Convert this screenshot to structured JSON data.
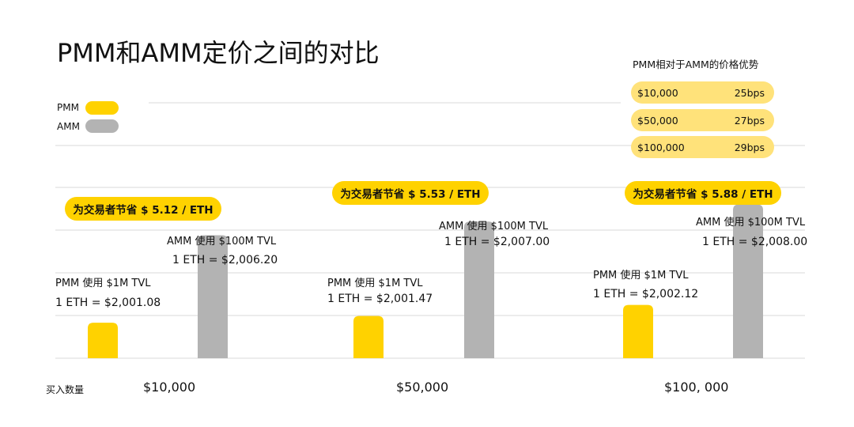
{
  "title": "PMM和AMM定价之间的对比",
  "legend": [
    {
      "label": "PMM",
      "color": "#FFD200"
    },
    {
      "label": "AMM",
      "color": "#B3B3B3"
    }
  ],
  "advantage_table": {
    "title": "PMM相对于AMM的价格优势",
    "rows": [
      {
        "amount": "$10,000",
        "bps": "25bps"
      },
      {
        "amount": "$50,000",
        "bps": "27bps"
      },
      {
        "amount": "$100,000",
        "bps": "29bps"
      }
    ]
  },
  "chart_data": {
    "type": "bar",
    "categories": [
      "$10,000",
      "$50,000",
      "$100, 000"
    ],
    "xlabel": "买入数量",
    "series": [
      {
        "name": "PMM",
        "color": "#FFD200",
        "values": [
          2001.08,
          2001.47,
          2002.12
        ]
      },
      {
        "name": "AMM",
        "color": "#B3B3B3",
        "values": [
          2006.2,
          2007.0,
          2008.0
        ]
      }
    ],
    "grid": true,
    "groups": [
      {
        "savings": "为交易者节省 $ 5.12 / ETH",
        "pmm_label": "PMM 使用 $1M TVL",
        "pmm_price": "1 ETH = $2,001.08",
        "amm_label": "AMM 使用 $100M TVL",
        "amm_price": "1 ETH = $2,006.20"
      },
      {
        "savings": "为交易者节省 $ 5.53 / ETH",
        "pmm_label": "PMM 使用 $1M TVL",
        "pmm_price": "1 ETH = $2,001.47",
        "amm_label": "AMM 使用 $100M TVL",
        "amm_price": "1 ETH = $2,007.00"
      },
      {
        "savings": "为交易者节省 $ 5.88 / ETH",
        "pmm_label": "PMM 使用 $1M TVL",
        "pmm_price": "1 ETH = $2,002.12",
        "amm_label": "AMM 使用 $100M TVL",
        "amm_price": "1 ETH = $2,008.00"
      }
    ]
  }
}
